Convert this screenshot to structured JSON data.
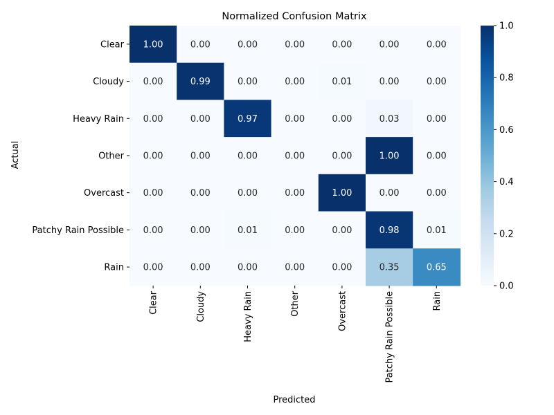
{
  "chart_data": {
    "type": "heatmap",
    "title": "Normalized Confusion Matrix",
    "xlabel": "Predicted",
    "ylabel": "Actual",
    "x_categories": [
      "Clear",
      "Cloudy",
      "Heavy Rain",
      "Other",
      "Overcast",
      "Patchy Rain Possible",
      "Rain"
    ],
    "y_categories": [
      "Clear",
      "Cloudy",
      "Heavy Rain",
      "Other",
      "Overcast",
      "Patchy Rain Possible",
      "Rain"
    ],
    "values": [
      [
        1.0,
        0.0,
        0.0,
        0.0,
        0.0,
        0.0,
        0.0
      ],
      [
        0.0,
        0.99,
        0.0,
        0.0,
        0.01,
        0.0,
        0.0
      ],
      [
        0.0,
        0.0,
        0.97,
        0.0,
        0.0,
        0.03,
        0.0
      ],
      [
        0.0,
        0.0,
        0.0,
        0.0,
        0.0,
        1.0,
        0.0
      ],
      [
        0.0,
        0.0,
        0.0,
        0.0,
        1.0,
        0.0,
        0.0
      ],
      [
        0.0,
        0.0,
        0.01,
        0.0,
        0.0,
        0.98,
        0.01
      ],
      [
        0.0,
        0.0,
        0.0,
        0.0,
        0.0,
        0.35,
        0.65
      ]
    ],
    "value_format": "2 decimals",
    "colormap": "Blues",
    "colorbar": {
      "range": [
        0.0,
        1.0
      ],
      "ticks": [
        "0.0",
        "0.2",
        "0.4",
        "0.6",
        "0.8",
        "1.0"
      ]
    }
  }
}
